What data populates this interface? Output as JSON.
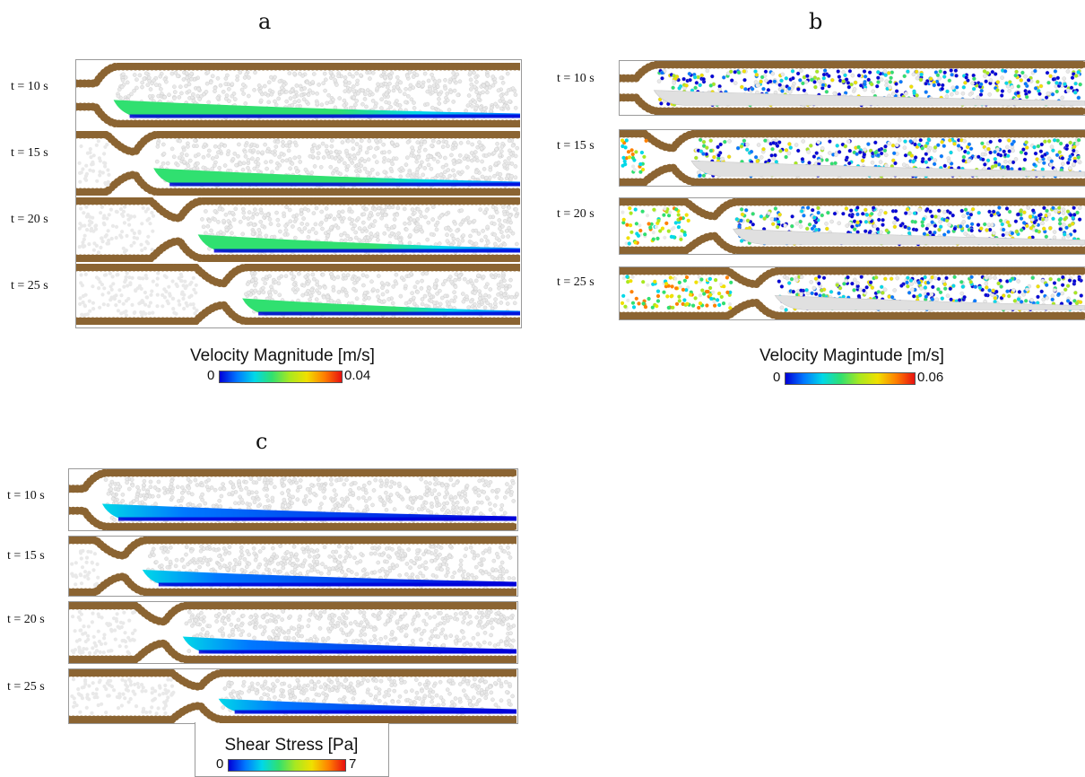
{
  "panels": [
    {
      "letter": "a",
      "labels": [
        "t = 10 s",
        "t = 15 s",
        "t = 20 s",
        "t = 25 s"
      ],
      "colorbar": {
        "title": "Velocity Magnitude [m/s]",
        "min": "0",
        "max": "0.04"
      },
      "scheme": "velocity"
    },
    {
      "letter": "b",
      "labels": [
        "t = 10 s",
        "t = 15 s",
        "t = 20 s",
        "t = 25 s"
      ],
      "colorbar": {
        "title": "Velocity Magintude [m/s]",
        "min": "0",
        "max": "0.06"
      },
      "scheme": "bubbles"
    },
    {
      "letter": "c",
      "labels": [
        "t = 10 s",
        "t = 15 s",
        "t = 20 s",
        "t = 25 s"
      ],
      "colorbar": {
        "title": "Shear Stress [Pa]",
        "min": "0",
        "max": "7"
      },
      "scheme": "stress"
    }
  ],
  "colors": {
    "wall": "#8b6432",
    "wall_dark": "#6e4c22",
    "particle": "#e9e9e9",
    "jet": [
      "#0000d8",
      "#0078ff",
      "#00d8e8",
      "#30e070",
      "#a8e820",
      "#f0e000",
      "#ff8000",
      "#e81010"
    ]
  }
}
